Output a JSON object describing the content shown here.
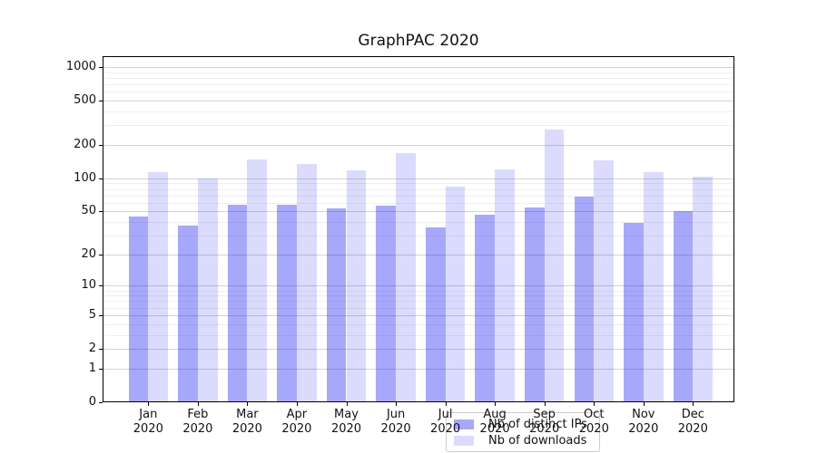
{
  "chart": {
    "title": "GraphPAC 2020",
    "chart_data": {
      "type": "bar",
      "categories": [
        "Jan",
        "Feb",
        "Mar",
        "Apr",
        "May",
        "Jun",
        "Jul",
        "Aug",
        "Sep",
        "Oct",
        "Nov",
        "Dec"
      ],
      "year_label": "2020",
      "series": [
        {
          "name": "Nb of distinct IPs",
          "color": "rgba(0,0,240,0.34)",
          "values": [
            45,
            37,
            58,
            58,
            53,
            56,
            36,
            47,
            54,
            68,
            39,
            50
          ]
        },
        {
          "name": "Nb of downloads",
          "color": "rgba(0,0,240,0.14)",
          "values": [
            113,
            100,
            148,
            135,
            117,
            168,
            84,
            121,
            273,
            144,
            113,
            103
          ]
        }
      ],
      "y_axis": {
        "scale": "log1p",
        "major_ticks": [
          0,
          1,
          2,
          5,
          10,
          20,
          50,
          100,
          200,
          500,
          1000
        ],
        "minor_ticks": [
          3,
          4,
          6,
          7,
          8,
          9,
          30,
          40,
          60,
          70,
          80,
          90,
          300,
          400,
          600,
          700,
          800,
          900
        ],
        "ylim": [
          0,
          1240
        ]
      },
      "grid": {
        "on": true,
        "major_color": "#d4d4d4",
        "minor_color": "#efefef"
      },
      "legend": {
        "position": "lower center",
        "border_color": "#cccccc"
      }
    }
  }
}
